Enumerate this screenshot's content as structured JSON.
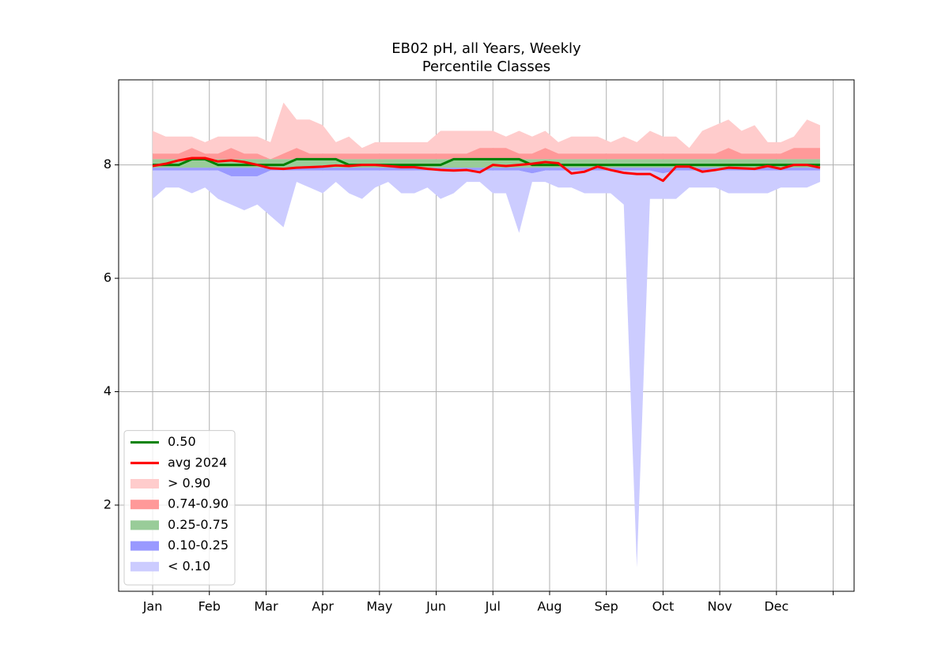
{
  "chart_data": {
    "type": "line",
    "title": "EB02 pH, all Years, Weekly",
    "subtitle": "Percentile Classes",
    "x": [
      1,
      2,
      3,
      4,
      5,
      6,
      7,
      8,
      9,
      10,
      11,
      12,
      13,
      14,
      15,
      16,
      17,
      18,
      19,
      20,
      21,
      22,
      23,
      24,
      25,
      26,
      27,
      28,
      29,
      30,
      31,
      32,
      33,
      34,
      35,
      36,
      37,
      38,
      39,
      40,
      41,
      42,
      43,
      44,
      45,
      46,
      47,
      48,
      49,
      50,
      51,
      52
    ],
    "xlim": [
      -1.6,
      54.6
    ],
    "xticks": [
      {
        "value": 1,
        "label": "Jan"
      },
      {
        "value": 5.333,
        "label": "Feb"
      },
      {
        "value": 9.667,
        "label": "Mar"
      },
      {
        "value": 14,
        "label": "Apr"
      },
      {
        "value": 18.333,
        "label": "May"
      },
      {
        "value": 22.667,
        "label": "Jun"
      },
      {
        "value": 27,
        "label": "Jul"
      },
      {
        "value": 31.333,
        "label": "Aug"
      },
      {
        "value": 35.667,
        "label": "Sep"
      },
      {
        "value": 40,
        "label": "Oct"
      },
      {
        "value": 44.333,
        "label": "Nov"
      },
      {
        "value": 48.667,
        "label": "Dec"
      },
      {
        "value": 53,
        "label": null
      }
    ],
    "ylim": [
      0.48,
      9.5
    ],
    "yticks": [
      2,
      4,
      6,
      8
    ],
    "grid": true,
    "legend": "lower left",
    "bands": [
      {
        "name": "> 0.90",
        "color": "#ffcccc",
        "lower": [
          8.2,
          8.2,
          8.2,
          8.3,
          8.2,
          8.2,
          8.3,
          8.2,
          8.2,
          8.1,
          8.2,
          8.3,
          8.2,
          8.2,
          8.2,
          8.2,
          8.2,
          8.2,
          8.2,
          8.2,
          8.2,
          8.2,
          8.2,
          8.2,
          8.2,
          8.3,
          8.3,
          8.3,
          8.2,
          8.2,
          8.3,
          8.2,
          8.2,
          8.2,
          8.2,
          8.2,
          8.2,
          8.2,
          8.2,
          8.2,
          8.2,
          8.2,
          8.2,
          8.2,
          8.3,
          8.2,
          8.2,
          8.2,
          8.2,
          8.3,
          8.3,
          8.3
        ],
        "upper": [
          8.6,
          8.5,
          8.5,
          8.5,
          8.4,
          8.5,
          8.5,
          8.5,
          8.5,
          8.4,
          9.1,
          8.8,
          8.8,
          8.7,
          8.4,
          8.5,
          8.3,
          8.4,
          8.4,
          8.4,
          8.4,
          8.4,
          8.6,
          8.6,
          8.6,
          8.6,
          8.6,
          8.5,
          8.6,
          8.5,
          8.6,
          8.4,
          8.5,
          8.5,
          8.5,
          8.4,
          8.5,
          8.4,
          8.6,
          8.5,
          8.5,
          8.3,
          8.6,
          8.7,
          8.8,
          8.6,
          8.7,
          8.4,
          8.4,
          8.5,
          8.8,
          8.7
        ]
      },
      {
        "name": "0.74-0.90",
        "color": "#ff9999",
        "lower": [
          8.1,
          8.1,
          8.1,
          8.1,
          8.1,
          8.1,
          8.1,
          8.1,
          8.1,
          8.1,
          8.1,
          8.1,
          8.1,
          8.1,
          8.1,
          8.1,
          8.1,
          8.1,
          8.1,
          8.1,
          8.1,
          8.1,
          8.1,
          8.1,
          8.1,
          8.1,
          8.1,
          8.1,
          8.1,
          8.1,
          8.1,
          8.1,
          8.1,
          8.1,
          8.1,
          8.1,
          8.1,
          8.1,
          8.1,
          8.1,
          8.1,
          8.1,
          8.1,
          8.1,
          8.1,
          8.1,
          8.1,
          8.1,
          8.1,
          8.1,
          8.1,
          8.1
        ],
        "upper": [
          8.2,
          8.2,
          8.2,
          8.3,
          8.2,
          8.2,
          8.3,
          8.2,
          8.2,
          8.1,
          8.2,
          8.3,
          8.2,
          8.2,
          8.2,
          8.2,
          8.2,
          8.2,
          8.2,
          8.2,
          8.2,
          8.2,
          8.2,
          8.2,
          8.2,
          8.3,
          8.3,
          8.3,
          8.2,
          8.2,
          8.3,
          8.2,
          8.2,
          8.2,
          8.2,
          8.2,
          8.2,
          8.2,
          8.2,
          8.2,
          8.2,
          8.2,
          8.2,
          8.2,
          8.3,
          8.2,
          8.2,
          8.2,
          8.2,
          8.3,
          8.3,
          8.3
        ]
      },
      {
        "name": "0.25-0.75",
        "color": "#99cc99",
        "lower": [
          7.95,
          7.95,
          7.95,
          7.95,
          7.95,
          7.95,
          7.95,
          7.95,
          7.95,
          7.95,
          7.95,
          7.95,
          7.95,
          7.95,
          7.95,
          7.95,
          7.95,
          7.95,
          7.95,
          7.95,
          7.95,
          7.95,
          7.95,
          7.95,
          7.95,
          7.95,
          7.95,
          7.95,
          7.95,
          7.95,
          7.95,
          7.95,
          7.95,
          7.95,
          7.95,
          7.95,
          7.95,
          7.95,
          7.95,
          7.95,
          7.95,
          7.95,
          7.95,
          7.95,
          7.95,
          7.95,
          7.95,
          7.95,
          7.95,
          7.95,
          7.95,
          7.95
        ],
        "upper": [
          8.1,
          8.1,
          8.1,
          8.1,
          8.1,
          8.1,
          8.1,
          8.1,
          8.1,
          8.1,
          8.1,
          8.1,
          8.1,
          8.1,
          8.1,
          8.1,
          8.1,
          8.1,
          8.1,
          8.1,
          8.1,
          8.1,
          8.1,
          8.1,
          8.1,
          8.1,
          8.1,
          8.1,
          8.1,
          8.1,
          8.1,
          8.1,
          8.1,
          8.1,
          8.1,
          8.1,
          8.1,
          8.1,
          8.1,
          8.1,
          8.1,
          8.1,
          8.1,
          8.1,
          8.1,
          8.1,
          8.1,
          8.1,
          8.1,
          8.1,
          8.1,
          8.1
        ]
      },
      {
        "name": "0.10-0.25",
        "color": "#9999ff",
        "lower": [
          7.9,
          7.9,
          7.9,
          7.9,
          7.9,
          7.9,
          7.8,
          7.8,
          7.8,
          7.9,
          7.9,
          7.9,
          7.9,
          7.9,
          7.9,
          7.9,
          7.9,
          7.9,
          7.9,
          7.9,
          7.9,
          7.9,
          7.9,
          7.9,
          7.9,
          7.9,
          7.9,
          7.9,
          7.9,
          7.85,
          7.9,
          7.9,
          7.9,
          7.9,
          7.9,
          7.9,
          7.9,
          7.9,
          7.9,
          7.85,
          7.9,
          7.9,
          7.9,
          7.9,
          7.9,
          7.9,
          7.9,
          7.9,
          7.9,
          7.9,
          7.9,
          7.9
        ],
        "upper": [
          7.95,
          7.95,
          7.95,
          7.95,
          7.95,
          7.95,
          7.95,
          7.95,
          7.95,
          7.95,
          7.95,
          7.95,
          7.95,
          7.95,
          7.95,
          7.95,
          7.95,
          7.95,
          7.95,
          7.95,
          7.95,
          7.95,
          7.95,
          7.95,
          7.95,
          7.95,
          7.95,
          7.95,
          7.95,
          7.95,
          7.95,
          7.95,
          7.95,
          7.95,
          7.95,
          7.95,
          7.95,
          7.95,
          7.95,
          7.95,
          7.95,
          7.95,
          7.95,
          7.95,
          7.95,
          7.95,
          7.95,
          7.95,
          7.95,
          7.95,
          7.95,
          7.95
        ]
      },
      {
        "name": "< 0.10",
        "color": "#ccccff",
        "lower": [
          7.4,
          7.6,
          7.6,
          7.5,
          7.6,
          7.4,
          7.3,
          7.2,
          7.3,
          7.1,
          6.9,
          7.7,
          7.6,
          7.5,
          7.7,
          7.5,
          7.4,
          7.6,
          7.7,
          7.5,
          7.5,
          7.6,
          7.4,
          7.5,
          7.7,
          7.7,
          7.5,
          7.5,
          6.8,
          7.7,
          7.7,
          7.6,
          7.6,
          7.5,
          7.5,
          7.5,
          7.3,
          0.9,
          7.4,
          7.4,
          7.4,
          7.6,
          7.6,
          7.6,
          7.5,
          7.5,
          7.5,
          7.5,
          7.6,
          7.6,
          7.6,
          7.7
        ],
        "upper": [
          7.9,
          7.9,
          7.9,
          7.9,
          7.9,
          7.9,
          7.8,
          7.8,
          7.8,
          7.9,
          7.9,
          7.9,
          7.9,
          7.9,
          7.9,
          7.9,
          7.9,
          7.9,
          7.9,
          7.9,
          7.9,
          7.9,
          7.9,
          7.9,
          7.9,
          7.9,
          7.9,
          7.9,
          7.9,
          7.85,
          7.9,
          7.9,
          7.9,
          7.9,
          7.9,
          7.9,
          7.9,
          7.9,
          7.9,
          7.85,
          7.9,
          7.9,
          7.9,
          7.9,
          7.9,
          7.9,
          7.9,
          7.9,
          7.9,
          7.9,
          7.9,
          7.9
        ]
      }
    ],
    "series": [
      {
        "name": "0.50",
        "color": "#008000",
        "values": [
          8.0,
          8.0,
          8.0,
          8.1,
          8.1,
          8.0,
          8.0,
          8.0,
          8.0,
          8.0,
          8.0,
          8.1,
          8.1,
          8.1,
          8.1,
          8.0,
          8.0,
          8.0,
          8.0,
          8.0,
          8.0,
          8.0,
          8.0,
          8.1,
          8.1,
          8.1,
          8.1,
          8.1,
          8.1,
          8.0,
          8.0,
          8.0,
          8.0,
          8.0,
          8.0,
          8.0,
          8.0,
          8.0,
          8.0,
          8.0,
          8.0,
          8.0,
          8.0,
          8.0,
          8.0,
          8.0,
          8.0,
          8.0,
          8.0,
          8.0,
          8.0,
          8.0
        ]
      },
      {
        "name": "avg 2024",
        "color": "#ff0000",
        "values": [
          7.98,
          8.02,
          8.08,
          8.12,
          8.12,
          8.06,
          8.08,
          8.05,
          8.0,
          7.94,
          7.93,
          7.95,
          7.96,
          7.97,
          7.99,
          7.98,
          8.0,
          8.0,
          7.98,
          7.96,
          7.96,
          7.93,
          7.91,
          7.9,
          7.91,
          7.87,
          8.0,
          7.98,
          8.0,
          8.02,
          8.05,
          8.03,
          7.85,
          7.88,
          7.97,
          7.91,
          7.86,
          7.84,
          7.84,
          7.72,
          7.97,
          7.97,
          7.88,
          7.91,
          7.95,
          7.94,
          7.93,
          7.98,
          7.93,
          8.0,
          8.0,
          7.95
        ]
      }
    ]
  }
}
